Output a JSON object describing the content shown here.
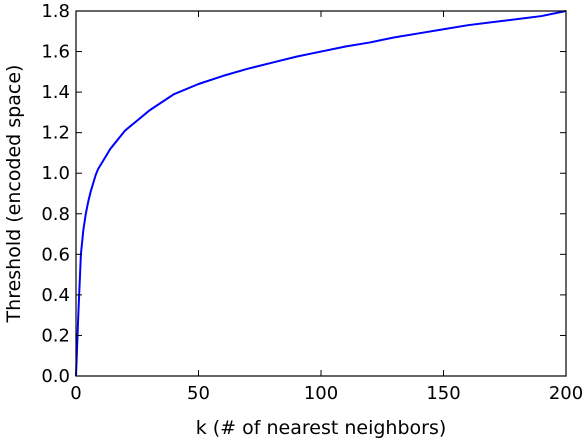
{
  "chart_data": {
    "type": "line",
    "title": "",
    "xlabel": "k (# of nearest neighbors)",
    "ylabel": "Threshold (encoded space)",
    "xlim": [
      0,
      200
    ],
    "ylim": [
      0.0,
      1.8
    ],
    "grid": false,
    "x_ticks": [
      "0",
      "50",
      "100",
      "150",
      "200"
    ],
    "y_ticks": [
      "0.0",
      "0.2",
      "0.4",
      "0.6",
      "0.8",
      "1.0",
      "1.2",
      "1.4",
      "1.6",
      "1.8"
    ],
    "series": [
      {
        "color": "#0000ff",
        "x": [
          0,
          1,
          2,
          3,
          4,
          5,
          6,
          7,
          8,
          9,
          10,
          12,
          14,
          16,
          18,
          20,
          25,
          28,
          30,
          35,
          40,
          50,
          60,
          70,
          80,
          90,
          100,
          110,
          120,
          130,
          140,
          150,
          160,
          170,
          180,
          190,
          200
        ],
        "y": [
          0.0,
          0.32,
          0.6,
          0.72,
          0.8,
          0.86,
          0.91,
          0.95,
          0.99,
          1.02,
          1.04,
          1.08,
          1.12,
          1.15,
          1.18,
          1.21,
          1.26,
          1.29,
          1.31,
          1.35,
          1.39,
          1.44,
          1.48,
          1.515,
          1.545,
          1.575,
          1.6,
          1.625,
          1.645,
          1.67,
          1.69,
          1.71,
          1.73,
          1.745,
          1.76,
          1.775,
          1.8
        ]
      }
    ]
  }
}
